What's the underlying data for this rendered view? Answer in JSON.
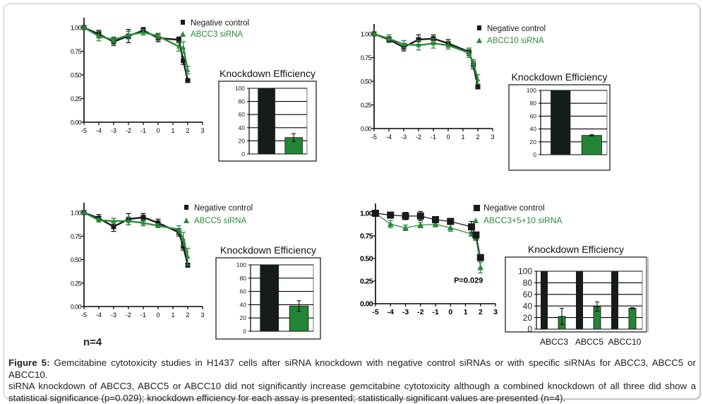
{
  "figure": {
    "n_label": "n=4",
    "caption": {
      "lead": "Figure 5:",
      "line1": "Gemcitabine cytotoxicity studies in H1437 cells after siRNA knockdown with negative control siRNAs or with specific siRNAs for ABCC3, ABCC5 or ABCC10.",
      "line2": "siRNA knockdown of ABCC3, ABCC5 or ABCC10 did not significantly increase gemcitabine cytotoxicity although a combined knockdown of all three did show a",
      "line3": "statistical significance (p=0.029); knockdown efficiency for each assay is presented; statistically significant values are presented (n=4)."
    }
  },
  "colors": {
    "control": "#1a1a1a",
    "sirna": "#2a8a3a",
    "bar_control": "#161c19",
    "bar_sirna": "#238535"
  },
  "chart_data": [
    {
      "id": "abcc3",
      "type": "line",
      "title": "",
      "xlabel": "",
      "ylabel": "",
      "xlim": [
        -5,
        3
      ],
      "ylim": [
        0,
        1
      ],
      "x_ticks": [
        "-5",
        "-4",
        "-3",
        "-2",
        "-1",
        "0",
        "1",
        "2",
        "3"
      ],
      "y_ticks": [
        "0.00",
        "0.25",
        "0.50",
        "0.75",
        "1.00"
      ],
      "legend": [
        "Negative control",
        "ABCC3 siRNA"
      ],
      "legend_position": "top-right",
      "x": [
        -5,
        -4,
        -3,
        -2,
        -1,
        0,
        1.4,
        1.7,
        2
      ],
      "series": [
        {
          "name": "Negative control",
          "marker": "square",
          "values": [
            1.0,
            0.93,
            0.85,
            0.91,
            0.97,
            0.89,
            0.87,
            0.65,
            0.44
          ],
          "errors": [
            0.01,
            0.04,
            0.04,
            0.07,
            0.03,
            0.04,
            0.03,
            0.04,
            0.02
          ]
        },
        {
          "name": "ABCC3 siRNA",
          "marker": "triangle",
          "values": [
            1.0,
            0.91,
            0.87,
            0.92,
            0.95,
            0.91,
            0.8,
            0.79,
            0.55
          ],
          "errors": [
            0.01,
            0.05,
            0.03,
            0.04,
            0.03,
            0.03,
            0.05,
            0.06,
            0.04
          ]
        }
      ],
      "knockdown": {
        "title": "Knockdown Efficiency",
        "type": "bar",
        "ylim": [
          0,
          100
        ],
        "y_ticks": [
          "0",
          "20",
          "40",
          "60",
          "80",
          "100"
        ],
        "groups": [
          ""
        ],
        "control_values": [
          100
        ],
        "sirna_values": [
          25
        ],
        "sirna_errors": [
          6
        ]
      }
    },
    {
      "id": "abcc10",
      "type": "line",
      "title": "",
      "xlabel": "",
      "ylabel": "",
      "xlim": [
        -5,
        3
      ],
      "ylim": [
        0,
        1
      ],
      "x_ticks": [
        "-5",
        "-4",
        "-3",
        "-2",
        "-1",
        "0",
        "1",
        "2",
        "3"
      ],
      "y_ticks": [
        "0.00",
        "0.25",
        "0.50",
        "0.75",
        "1.00"
      ],
      "legend": [
        "Negative control",
        "ABCC10 siRNA"
      ],
      "legend_position": "top-right",
      "x": [
        -5,
        -4,
        -3,
        -2,
        -1,
        0,
        1.4,
        1.7,
        2
      ],
      "series": [
        {
          "name": "Negative control",
          "marker": "square",
          "values": [
            1.0,
            0.94,
            0.86,
            0.94,
            0.95,
            0.9,
            0.81,
            0.67,
            0.44
          ],
          "errors": [
            0.01,
            0.03,
            0.04,
            0.05,
            0.04,
            0.04,
            0.04,
            0.04,
            0.02
          ]
        },
        {
          "name": "ABCC10 siRNA",
          "marker": "triangle",
          "values": [
            1.0,
            0.95,
            0.89,
            0.88,
            0.9,
            0.88,
            0.8,
            0.69,
            0.52
          ],
          "errors": [
            0.01,
            0.04,
            0.04,
            0.05,
            0.05,
            0.04,
            0.05,
            0.04,
            0.05
          ]
        }
      ],
      "knockdown": {
        "title": "Knockdown Efficiency",
        "type": "bar",
        "ylim": [
          0,
          100
        ],
        "y_ticks": [
          "0",
          "20",
          "40",
          "60",
          "80",
          "100"
        ],
        "groups": [
          ""
        ],
        "control_values": [
          100
        ],
        "sirna_values": [
          30
        ],
        "sirna_errors": [
          1
        ]
      }
    },
    {
      "id": "abcc5",
      "type": "line",
      "title": "",
      "xlabel": "",
      "ylabel": "",
      "xlim": [
        -5,
        3
      ],
      "ylim": [
        0,
        1
      ],
      "x_ticks": [
        "-5",
        "-4",
        "-3",
        "-2",
        "-1",
        "0",
        "1",
        "2",
        "3"
      ],
      "y_ticks": [
        "0.00",
        "0.25",
        "0.50",
        "0.75",
        "1.00"
      ],
      "legend": [
        "Negative control",
        "ABCC5 siRNA"
      ],
      "legend_position": "top-right",
      "x": [
        -5,
        -4,
        -3,
        -2,
        -1,
        0,
        1.4,
        1.7,
        2
      ],
      "series": [
        {
          "name": "Negative control",
          "marker": "square",
          "values": [
            1.0,
            0.94,
            0.85,
            0.93,
            0.95,
            0.89,
            0.79,
            0.64,
            0.44
          ],
          "errors": [
            0.01,
            0.04,
            0.05,
            0.06,
            0.04,
            0.04,
            0.04,
            0.04,
            0.02
          ]
        },
        {
          "name": "ABCC5 siRNA",
          "marker": "triangle",
          "values": [
            1.0,
            0.92,
            0.91,
            0.91,
            0.89,
            0.86,
            0.82,
            0.72,
            0.53
          ],
          "errors": [
            0.01,
            0.02,
            0.03,
            0.04,
            0.03,
            0.02,
            0.04,
            0.07,
            0.09
          ]
        }
      ],
      "knockdown": {
        "title": "Knockdown Efficiency",
        "type": "bar",
        "ylim": [
          0,
          100
        ],
        "y_ticks": [
          "0",
          "20",
          "40",
          "60",
          "80",
          "100"
        ],
        "groups": [
          ""
        ],
        "control_values": [
          100
        ],
        "sirna_values": [
          38
        ],
        "sirna_errors": [
          8
        ]
      }
    },
    {
      "id": "abcc3-5-10",
      "type": "line",
      "title": "",
      "xlabel": "",
      "ylabel": "",
      "xlim": [
        -5,
        3
      ],
      "ylim": [
        0,
        1
      ],
      "x_ticks": [
        "-5",
        "-4",
        "-3",
        "-2",
        "-1",
        "0",
        "1",
        "2",
        "3"
      ],
      "y_ticks": [
        "0.00",
        "0.25",
        "0.50",
        "0.75",
        "1.00"
      ],
      "legend": [
        "Negative control",
        "ABCC3+5+10 siRNA"
      ],
      "legend_position": "top-right",
      "annotation": "P=0.029",
      "x": [
        -5,
        -4,
        -3,
        -2,
        -1,
        0,
        1.4,
        1.7,
        2
      ],
      "series": [
        {
          "name": "Negative control",
          "marker": "square",
          "values": [
            1.0,
            0.98,
            0.97,
            0.97,
            0.93,
            0.91,
            0.85,
            0.76,
            0.51
          ],
          "errors": [
            0.01,
            0.02,
            0.04,
            0.05,
            0.02,
            0.02,
            0.06,
            0.02,
            0.01
          ]
        },
        {
          "name": "ABCC3+5+10 siRNA",
          "marker": "triangle",
          "values": [
            1.0,
            0.88,
            0.84,
            0.87,
            0.88,
            0.84,
            0.77,
            0.73,
            0.4
          ],
          "errors": [
            0.01,
            0.04,
            0.03,
            0.03,
            0.03,
            0.04,
            0.02,
            0.03,
            0.06
          ]
        }
      ],
      "knockdown": {
        "title": "Knockdown Efficiency",
        "type": "bar",
        "ylim": [
          0,
          100
        ],
        "y_ticks": [
          "0",
          "20",
          "40",
          "60",
          "80",
          "100"
        ],
        "groups": [
          "ABCC3",
          "ABCC5",
          "ABCC10"
        ],
        "control_values": [
          100,
          100,
          100
        ],
        "sirna_values": [
          22,
          39,
          36
        ],
        "sirna_errors": [
          14,
          8,
          1
        ]
      }
    }
  ]
}
